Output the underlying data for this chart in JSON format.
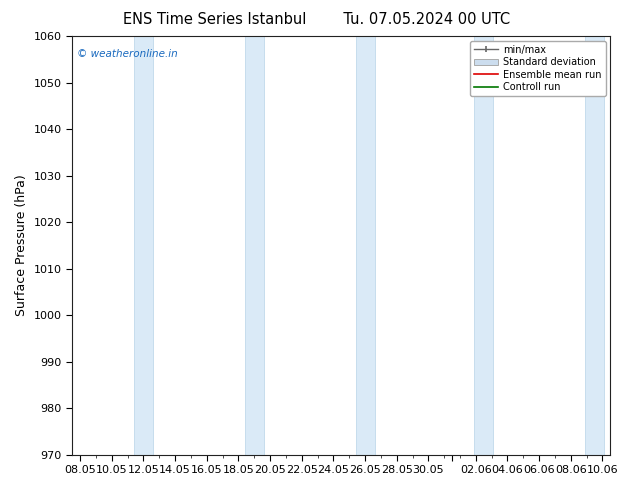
{
  "title_left": "ENS Time Series Istanbul",
  "title_right": "Tu. 07.05.2024 00 UTC",
  "ylabel": "Surface Pressure (hPa)",
  "ylim": [
    970,
    1060
  ],
  "yticks": [
    970,
    980,
    990,
    1000,
    1010,
    1020,
    1030,
    1040,
    1050,
    1060
  ],
  "xtick_labels": [
    "08.05",
    "10.05",
    "12.05",
    "14.05",
    "16.05",
    "18.05",
    "20.05",
    "22.05",
    "24.05",
    "26.05",
    "28.05",
    "30.05",
    "",
    "02.06",
    "04.06",
    "06.06",
    "08.06",
    "10.06"
  ],
  "watermark": "© weatheronline.in",
  "watermark_color": "#1a6abf",
  "bg_color": "#ffffff",
  "plot_bg_color": "#ffffff",
  "band_color": "#daeaf7",
  "band_edge_color": "#b8d4e8",
  "legend_items": [
    "min/max",
    "Standard deviation",
    "Ensemble mean run",
    "Controll run"
  ],
  "title_fontsize": 10.5,
  "axis_fontsize": 9,
  "tick_fontsize": 8
}
